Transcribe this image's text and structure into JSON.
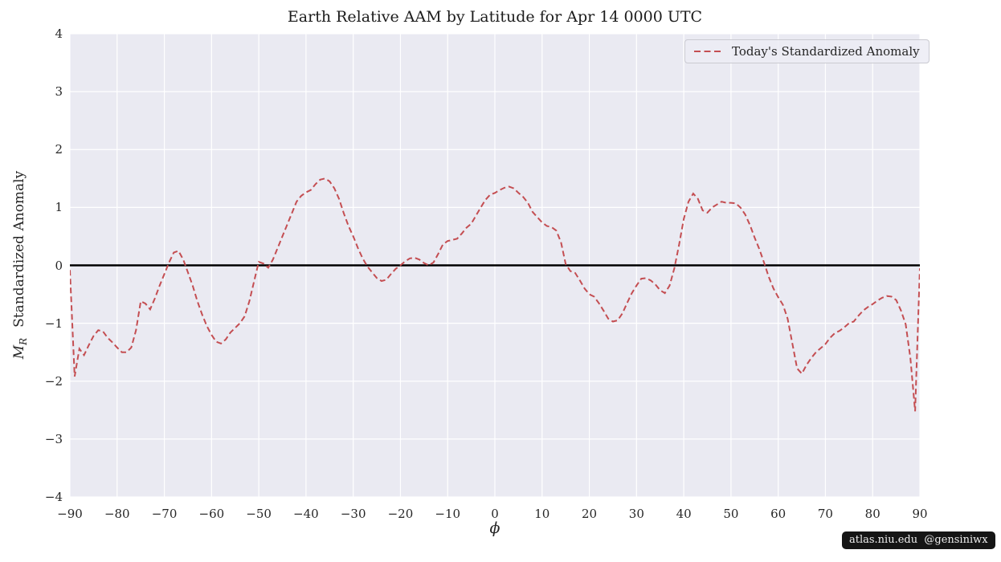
{
  "figure": {
    "watermark": "atlas.niu.edu  @gensiniwx"
  },
  "axes": {
    "xlabel": "ϕ",
    "ylabel_var": "M",
    "ylabel_var_sub": "R",
    "ylabel_text": "Standardized Anomaly"
  },
  "colors": {
    "plot_background": "#EAEAF2",
    "grid": "#FFFFFF",
    "zero_line": "#000000",
    "line": "#C44E52",
    "text": "#262626",
    "legend_border": "#CACAD1",
    "watermark_bg": "#151515",
    "watermark_text": "#EFEFEF"
  },
  "chart_data": {
    "type": "line",
    "title": "Earth Relative AAM by Latitude for Apr 14 0000 UTC",
    "xlabel": "ϕ",
    "ylabel": "M_R Standardized Anomaly",
    "xlim": [
      -90,
      90
    ],
    "ylim": [
      -4,
      4
    ],
    "grid": true,
    "legend_position": "upper right",
    "zero_line": 0,
    "x_ticks": [
      -90,
      -80,
      -70,
      -60,
      -50,
      -40,
      -30,
      -20,
      -10,
      0,
      10,
      20,
      30,
      40,
      50,
      60,
      70,
      80,
      90
    ],
    "x_tick_labels": [
      "−90",
      "−80",
      "−70",
      "−60",
      "−50",
      "−40",
      "−30",
      "−20",
      "−10",
      "0",
      "10",
      "20",
      "30",
      "40",
      "50",
      "60",
      "70",
      "80",
      "90"
    ],
    "y_ticks": [
      4,
      3,
      2,
      1,
      0,
      -1,
      -2,
      -3,
      -4
    ],
    "y_tick_labels": [
      "4",
      "3",
      "2",
      "1",
      "0",
      "−1",
      "−2",
      "−3",
      "−4"
    ],
    "series": [
      {
        "name": "Today's Standardized Anomaly",
        "style": "dashed",
        "color": "#C44E52",
        "x": [
          -90,
          -89,
          -88,
          -87,
          -86,
          -85,
          -84,
          -83,
          -82,
          -81,
          -80,
          -79,
          -78,
          -77,
          -76,
          -75,
          -74,
          -73,
          -72,
          -71,
          -70,
          -69,
          -68,
          -67,
          -66,
          -65,
          -64,
          -63,
          -62,
          -61,
          -60,
          -59,
          -58,
          -57,
          -56,
          -55,
          -54,
          -53,
          -52,
          -51,
          -50,
          -49,
          -48,
          -47,
          -46,
          -45,
          -44,
          -43,
          -42,
          -41,
          -40,
          -39,
          -38,
          -37,
          -36,
          -35,
          -34,
          -33,
          -32,
          -31,
          -30,
          -29,
          -28,
          -27,
          -26,
          -25,
          -24,
          -23,
          -22,
          -21,
          -20,
          -19,
          -18,
          -17,
          -16,
          -15,
          -14,
          -13,
          -12,
          -11,
          -10,
          -9,
          -8,
          -7,
          -6,
          -5,
          -4,
          -3,
          -2,
          -1,
          0,
          1,
          2,
          3,
          4,
          5,
          6,
          7,
          8,
          9,
          10,
          11,
          12,
          13,
          14,
          15,
          16,
          17,
          18,
          19,
          20,
          21,
          22,
          23,
          24,
          25,
          26,
          27,
          28,
          29,
          30,
          31,
          32,
          33,
          34,
          35,
          36,
          37,
          38,
          39,
          40,
          41,
          42,
          43,
          44,
          45,
          46,
          47,
          48,
          49,
          50,
          51,
          52,
          53,
          54,
          55,
          56,
          57,
          58,
          59,
          60,
          61,
          62,
          63,
          64,
          65,
          66,
          67,
          68,
          69,
          70,
          71,
          72,
          73,
          74,
          75,
          76,
          77,
          78,
          79,
          80,
          81,
          82,
          83,
          84,
          85,
          86,
          87,
          88,
          89,
          90
        ],
        "values": [
          -0.08,
          -1.92,
          -1.44,
          -1.55,
          -1.38,
          -1.22,
          -1.12,
          -1.14,
          -1.25,
          -1.33,
          -1.42,
          -1.5,
          -1.5,
          -1.42,
          -1.12,
          -0.62,
          -0.66,
          -0.76,
          -0.57,
          -0.35,
          -0.15,
          0.05,
          0.22,
          0.25,
          0.1,
          -0.12,
          -0.35,
          -0.62,
          -0.85,
          -1.05,
          -1.2,
          -1.32,
          -1.35,
          -1.28,
          -1.16,
          -1.08,
          -1.0,
          -0.88,
          -0.62,
          -0.28,
          0.06,
          0.03,
          -0.04,
          0.1,
          0.3,
          0.5,
          0.7,
          0.9,
          1.1,
          1.2,
          1.26,
          1.3,
          1.4,
          1.48,
          1.5,
          1.45,
          1.33,
          1.15,
          0.9,
          0.68,
          0.5,
          0.3,
          0.12,
          -0.02,
          -0.12,
          -0.22,
          -0.27,
          -0.25,
          -0.15,
          -0.06,
          0.0,
          0.07,
          0.12,
          0.13,
          0.1,
          0.04,
          0.0,
          0.05,
          0.2,
          0.36,
          0.42,
          0.44,
          0.46,
          0.55,
          0.65,
          0.72,
          0.86,
          1.0,
          1.13,
          1.22,
          1.25,
          1.3,
          1.34,
          1.36,
          1.33,
          1.25,
          1.18,
          1.08,
          0.92,
          0.83,
          0.74,
          0.68,
          0.66,
          0.6,
          0.4,
          0.02,
          -0.1,
          -0.13,
          -0.26,
          -0.4,
          -0.5,
          -0.54,
          -0.65,
          -0.78,
          -0.92,
          -0.97,
          -0.95,
          -0.83,
          -0.65,
          -0.48,
          -0.35,
          -0.23,
          -0.22,
          -0.26,
          -0.33,
          -0.43,
          -0.48,
          -0.35,
          -0.05,
          0.35,
          0.8,
          1.1,
          1.24,
          1.15,
          0.95,
          0.91,
          1.0,
          1.05,
          1.1,
          1.08,
          1.08,
          1.07,
          1.0,
          0.88,
          0.7,
          0.48,
          0.28,
          0.05,
          -0.2,
          -0.4,
          -0.55,
          -0.68,
          -0.92,
          -1.35,
          -1.78,
          -1.87,
          -1.72,
          -1.6,
          -1.5,
          -1.43,
          -1.36,
          -1.25,
          -1.17,
          -1.13,
          -1.07,
          -1.0,
          -0.97,
          -0.87,
          -0.78,
          -0.72,
          -0.67,
          -0.61,
          -0.56,
          -0.53,
          -0.54,
          -0.6,
          -0.78,
          -1.02,
          -1.6,
          -2.52,
          -0.05
        ]
      }
    ]
  }
}
